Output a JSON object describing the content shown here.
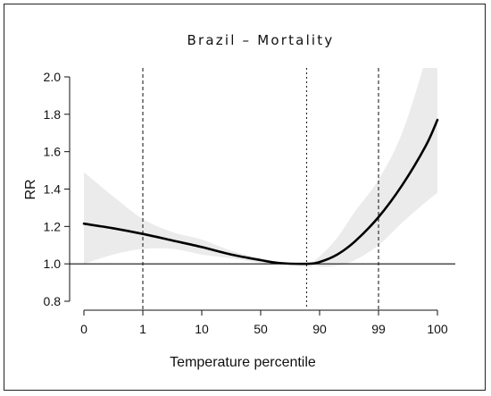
{
  "chart_data": {
    "type": "line",
    "title": "Brazil – Mortality",
    "xlabel": "Temperature percentile",
    "ylabel": "RR",
    "x_tick_labels": [
      "0",
      "1",
      "10",
      "50",
      "90",
      "99",
      "100"
    ],
    "x_tick_positions": [
      0,
      1,
      2,
      3,
      4,
      5,
      6
    ],
    "xlim": [
      0,
      6
    ],
    "ylim": [
      0.8,
      2.0
    ],
    "y_ticks": [
      0.8,
      1.0,
      1.2,
      1.4,
      1.6,
      1.8,
      2.0
    ],
    "y_tick_labels": [
      "0.8",
      "1.0",
      "1.2",
      "1.4",
      "1.6",
      "1.8",
      "2.0"
    ],
    "reference_line": 1.0,
    "vertical_lines": [
      {
        "x": 1.0,
        "style": "dashed"
      },
      {
        "x": 3.78,
        "style": "dotted"
      },
      {
        "x": 5.0,
        "style": "dashed"
      }
    ],
    "grid": false,
    "series": [
      {
        "values": [
          {
            "x": 0.0,
            "y": 1.215,
            "lo": 1.0,
            "hi": 1.49
          },
          {
            "x": 0.5,
            "y": 1.19,
            "lo": 1.05,
            "hi": 1.36
          },
          {
            "x": 1.0,
            "y": 1.16,
            "lo": 1.08,
            "hi": 1.24
          },
          {
            "x": 1.5,
            "y": 1.125,
            "lo": 1.08,
            "hi": 1.17
          },
          {
            "x": 2.0,
            "y": 1.09,
            "lo": 1.05,
            "hi": 1.13
          },
          {
            "x": 2.5,
            "y": 1.05,
            "lo": 1.03,
            "hi": 1.07
          },
          {
            "x": 3.0,
            "y": 1.02,
            "lo": 1.005,
            "hi": 1.03
          },
          {
            "x": 3.3,
            "y": 1.005,
            "lo": 0.998,
            "hi": 1.01
          },
          {
            "x": 3.78,
            "y": 1.0,
            "lo": 1.0,
            "hi": 1.0
          },
          {
            "x": 4.0,
            "y": 1.01,
            "lo": 0.985,
            "hi": 1.04
          },
          {
            "x": 4.3,
            "y": 1.05,
            "lo": 0.99,
            "hi": 1.14
          },
          {
            "x": 4.6,
            "y": 1.12,
            "lo": 1.02,
            "hi": 1.28
          },
          {
            "x": 5.0,
            "y": 1.25,
            "lo": 1.1,
            "hi": 1.45
          },
          {
            "x": 5.4,
            "y": 1.42,
            "lo": 1.22,
            "hi": 1.7
          },
          {
            "x": 5.8,
            "y": 1.63,
            "lo": 1.33,
            "hi": 2.1
          },
          {
            "x": 6.0,
            "y": 1.77,
            "lo": 1.38,
            "hi": 2.4
          }
        ]
      }
    ]
  }
}
